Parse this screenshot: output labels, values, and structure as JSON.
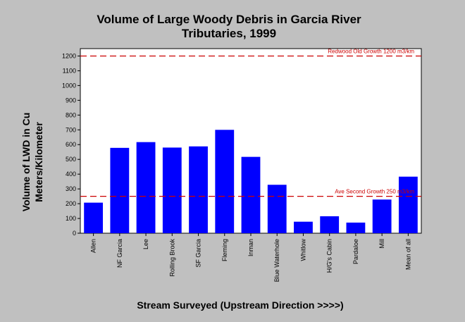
{
  "chart_data": {
    "type": "bar",
    "title_line1": "Volume of Large Woody Debris in Garcia River",
    "title_line2": "Tributaries, 1999",
    "xlabel": "Stream Surveyed (Upstream Direction >>>>)",
    "ylabel_line1": "Volume of LWD in Cu",
    "ylabel_line2": "Meters/Kilometer",
    "ylim": [
      0,
      1250
    ],
    "yticks": [
      0,
      100,
      200,
      300,
      400,
      500,
      600,
      700,
      800,
      900,
      1000,
      1100,
      1200
    ],
    "grid": false,
    "categories": [
      "Allen",
      "NF Garcia",
      "Lee",
      "Rolling Brook",
      "SF Garcia",
      "Fleming",
      "Inman",
      "Blue Waterhole",
      "Whitlow",
      "H/G's Cabin",
      "Pardaloe",
      "Mill",
      "Mean of all"
    ],
    "values": [
      207,
      578,
      617,
      580,
      588,
      700,
      517,
      328,
      78,
      115,
      72,
      228,
      383
    ],
    "reference_lines": [
      {
        "label": "Redwood Old Growth 1200 m3/km",
        "value": 1200
      },
      {
        "label": "Ave Second Growth 250 m3/km",
        "value": 250
      }
    ],
    "colors": {
      "bar": "#0000ff",
      "reference": "#cc0000",
      "plot_background": "#ffffff",
      "page_background": "#c0c0c0"
    }
  }
}
